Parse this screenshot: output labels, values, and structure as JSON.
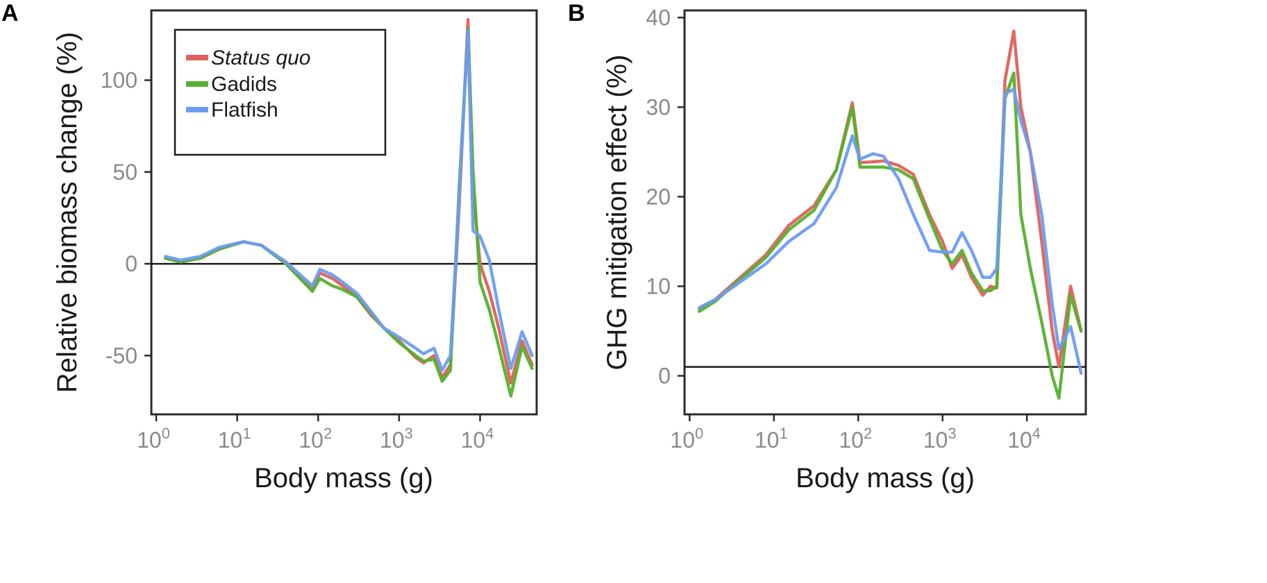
{
  "colors": {
    "status_quo": "#e0605a",
    "gadids": "#56b02e",
    "flatfish": "#6b9cf2",
    "reference_line": "#1a1a1a"
  },
  "legend": {
    "entries": [
      {
        "key": "status_quo",
        "label": "Status quo",
        "italic": true
      },
      {
        "key": "gadids",
        "label": "Gadids",
        "italic": false
      },
      {
        "key": "flatfish",
        "label": "Flatfish",
        "italic": false
      }
    ]
  },
  "chart_data": [
    {
      "type": "line",
      "panel": "A",
      "title": "",
      "xlabel": "Body mass (g)",
      "ylabel": "Relative biomass change (%)",
      "xscale": "log10",
      "xlim": [
        0.87,
        50000
      ],
      "ylim": [
        -82,
        138
      ],
      "xticks": [
        {
          "value": 1,
          "base": "10",
          "exp": "0"
        },
        {
          "value": 10,
          "base": "10",
          "exp": "1"
        },
        {
          "value": 100,
          "base": "10",
          "exp": "2"
        },
        {
          "value": 1000,
          "base": "10",
          "exp": "3"
        },
        {
          "value": 10000,
          "base": "10",
          "exp": "4"
        }
      ],
      "yticks": [
        {
          "value": 100,
          "label": "100"
        },
        {
          "value": 50,
          "label": "50"
        },
        {
          "value": 0,
          "label": "0"
        },
        {
          "value": -50,
          "label": "-50"
        }
      ],
      "reference_line": {
        "y": 0
      },
      "legend_position": "top-left",
      "series": [
        {
          "name": "Status quo",
          "color_key": "status_quo",
          "x": [
            1.3,
            2.0,
            3.5,
            6,
            12,
            20,
            40,
            60,
            85,
            105,
            150,
            200,
            300,
            450,
            650,
            1000,
            1600,
            2000,
            2700,
            3400,
            4300,
            5500,
            7100,
            8200,
            10000,
            13000,
            17000,
            24000,
            33000,
            44000
          ],
          "y": [
            3,
            1,
            3,
            8,
            12,
            10,
            0,
            -8,
            -14,
            -5,
            -8,
            -12,
            -18,
            -28,
            -35,
            -42,
            -51,
            -54,
            -50,
            -62,
            -55,
            30,
            133,
            40,
            0,
            -15,
            -35,
            -65,
            -42,
            -55
          ]
        },
        {
          "name": "Gadids",
          "color_key": "gadids",
          "x": [
            1.3,
            2.0,
            3.5,
            6,
            12,
            20,
            40,
            60,
            85,
            105,
            150,
            200,
            300,
            450,
            650,
            1000,
            1600,
            2000,
            2700,
            3400,
            4300,
            5500,
            7100,
            8200,
            10000,
            13000,
            17000,
            24000,
            33000,
            44000
          ],
          "y": [
            3,
            1,
            3,
            8,
            12,
            10,
            0,
            -8,
            -15,
            -8,
            -12,
            -14,
            -18,
            -27,
            -35,
            -43,
            -50,
            -53,
            -52,
            -64,
            -58,
            40,
            128,
            50,
            -10,
            -25,
            -45,
            -72,
            -45,
            -57
          ]
        },
        {
          "name": "Flatfish",
          "color_key": "flatfish",
          "x": [
            1.3,
            2.0,
            3.5,
            6,
            12,
            20,
            40,
            60,
            85,
            105,
            150,
            200,
            300,
            450,
            650,
            1000,
            1600,
            2000,
            2700,
            3400,
            4300,
            5500,
            7100,
            8200,
            10000,
            13000,
            17000,
            24000,
            33000,
            44000
          ],
          "y": [
            4,
            2,
            4,
            9,
            12,
            10,
            1,
            -6,
            -12,
            -3,
            -6,
            -10,
            -16,
            -26,
            -35,
            -40,
            -46,
            -49,
            -46,
            -58,
            -50,
            35,
            127,
            18,
            15,
            2,
            -25,
            -57,
            -37,
            -50
          ]
        }
      ]
    },
    {
      "type": "line",
      "panel": "B",
      "title": "",
      "xlabel": "Body mass (g)",
      "ylabel": "GHG mitigation effect (%)",
      "xscale": "log10",
      "xlim": [
        0.87,
        50000
      ],
      "ylim": [
        -4.3,
        40.8
      ],
      "xticks": [
        {
          "value": 1,
          "base": "10",
          "exp": "0"
        },
        {
          "value": 10,
          "base": "10",
          "exp": "1"
        },
        {
          "value": 100,
          "base": "10",
          "exp": "2"
        },
        {
          "value": 1000,
          "base": "10",
          "exp": "3"
        },
        {
          "value": 10000,
          "base": "10",
          "exp": "4"
        }
      ],
      "yticks": [
        {
          "value": 40,
          "label": "40"
        },
        {
          "value": 30,
          "label": "30"
        },
        {
          "value": 20,
          "label": "20"
        },
        {
          "value": 10,
          "label": "10"
        },
        {
          "value": 0,
          "label": "0"
        }
      ],
      "reference_line": {
        "y": 1
      },
      "legend_position": "none",
      "series": [
        {
          "name": "Status quo",
          "color_key": "status_quo",
          "x": [
            1.3,
            2.0,
            4,
            8,
            15,
            30,
            55,
            85,
            105,
            150,
            200,
            300,
            450,
            700,
            1000,
            1300,
            1700,
            2200,
            3000,
            3700,
            4400,
            5500,
            7000,
            8500,
            11000,
            15000,
            20000,
            24000,
            33000,
            44000
          ],
          "y": [
            7.5,
            8.5,
            11,
            13.5,
            16.8,
            19,
            23,
            30.5,
            23.8,
            23.9,
            24,
            23.5,
            22.5,
            18,
            15,
            12,
            13.5,
            11,
            9,
            10,
            9.8,
            33,
            38.5,
            30,
            25,
            15,
            5,
            1,
            10,
            5
          ]
        },
        {
          "name": "Gadids",
          "color_key": "gadids",
          "x": [
            1.3,
            2.0,
            4,
            8,
            15,
            30,
            55,
            85,
            105,
            150,
            200,
            300,
            450,
            700,
            1000,
            1300,
            1700,
            2200,
            3000,
            3700,
            4400,
            5500,
            7000,
            8500,
            11000,
            15000,
            20000,
            24000,
            33000,
            44000
          ],
          "y": [
            7.2,
            8.3,
            10.8,
            13.2,
            16.3,
            18.5,
            23,
            30,
            23.3,
            23.3,
            23.3,
            23,
            22,
            17.5,
            14,
            12.5,
            14,
            11.5,
            9.5,
            9.5,
            10,
            31,
            33.8,
            18,
            12,
            6,
            0,
            -2.5,
            9,
            5
          ]
        },
        {
          "name": "Flatfish",
          "color_key": "flatfish",
          "x": [
            1.3,
            2.0,
            4,
            8,
            15,
            30,
            55,
            85,
            105,
            150,
            200,
            300,
            450,
            700,
            1000,
            1300,
            1700,
            2200,
            3000,
            3700,
            4400,
            5500,
            7000,
            8500,
            11000,
            15000,
            20000,
            24000,
            33000,
            44000
          ],
          "y": [
            7.6,
            8.5,
            10.5,
            12.5,
            15,
            17,
            21,
            26.8,
            24.2,
            24.8,
            24.5,
            22,
            18,
            14,
            13.8,
            13.8,
            16,
            14,
            11,
            11,
            12,
            31.5,
            32,
            28.5,
            25,
            18,
            8,
            3,
            5.5,
            0.3
          ]
        }
      ]
    }
  ],
  "panels": [
    {
      "letter": "A"
    },
    {
      "letter": "B"
    }
  ]
}
